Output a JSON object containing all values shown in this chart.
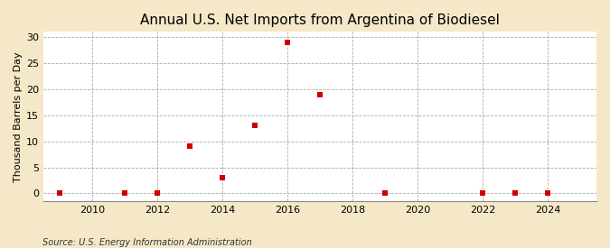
{
  "title": "Annual U.S. Net Imports from Argentina of Biodiesel",
  "ylabel": "Thousand Barrels per Day",
  "source": "Source: U.S. Energy Information Administration",
  "background_color": "#f5e8c8",
  "plot_bg_color": "#ffffff",
  "x_data": [
    2009,
    2011,
    2012,
    2013,
    2014,
    2015,
    2016,
    2017,
    2019,
    2022,
    2023,
    2024
  ],
  "y_data": [
    0,
    0,
    0,
    9.0,
    3.0,
    13.0,
    29.0,
    19.0,
    0,
    0,
    0,
    0
  ],
  "xlim": [
    2008.5,
    2025.5
  ],
  "ylim": [
    -1.5,
    31
  ],
  "yticks": [
    0,
    5,
    10,
    15,
    20,
    25,
    30
  ],
  "xticks": [
    2010,
    2012,
    2014,
    2016,
    2018,
    2020,
    2022,
    2024
  ],
  "marker_color": "#cc0000",
  "marker_size": 16,
  "grid_linestyle": "--",
  "grid_color": "#aaaaaa",
  "grid_linewidth": 0.6,
  "title_fontsize": 11,
  "title_fontweight": "normal",
  "label_fontsize": 8,
  "tick_fontsize": 8,
  "source_fontsize": 7
}
